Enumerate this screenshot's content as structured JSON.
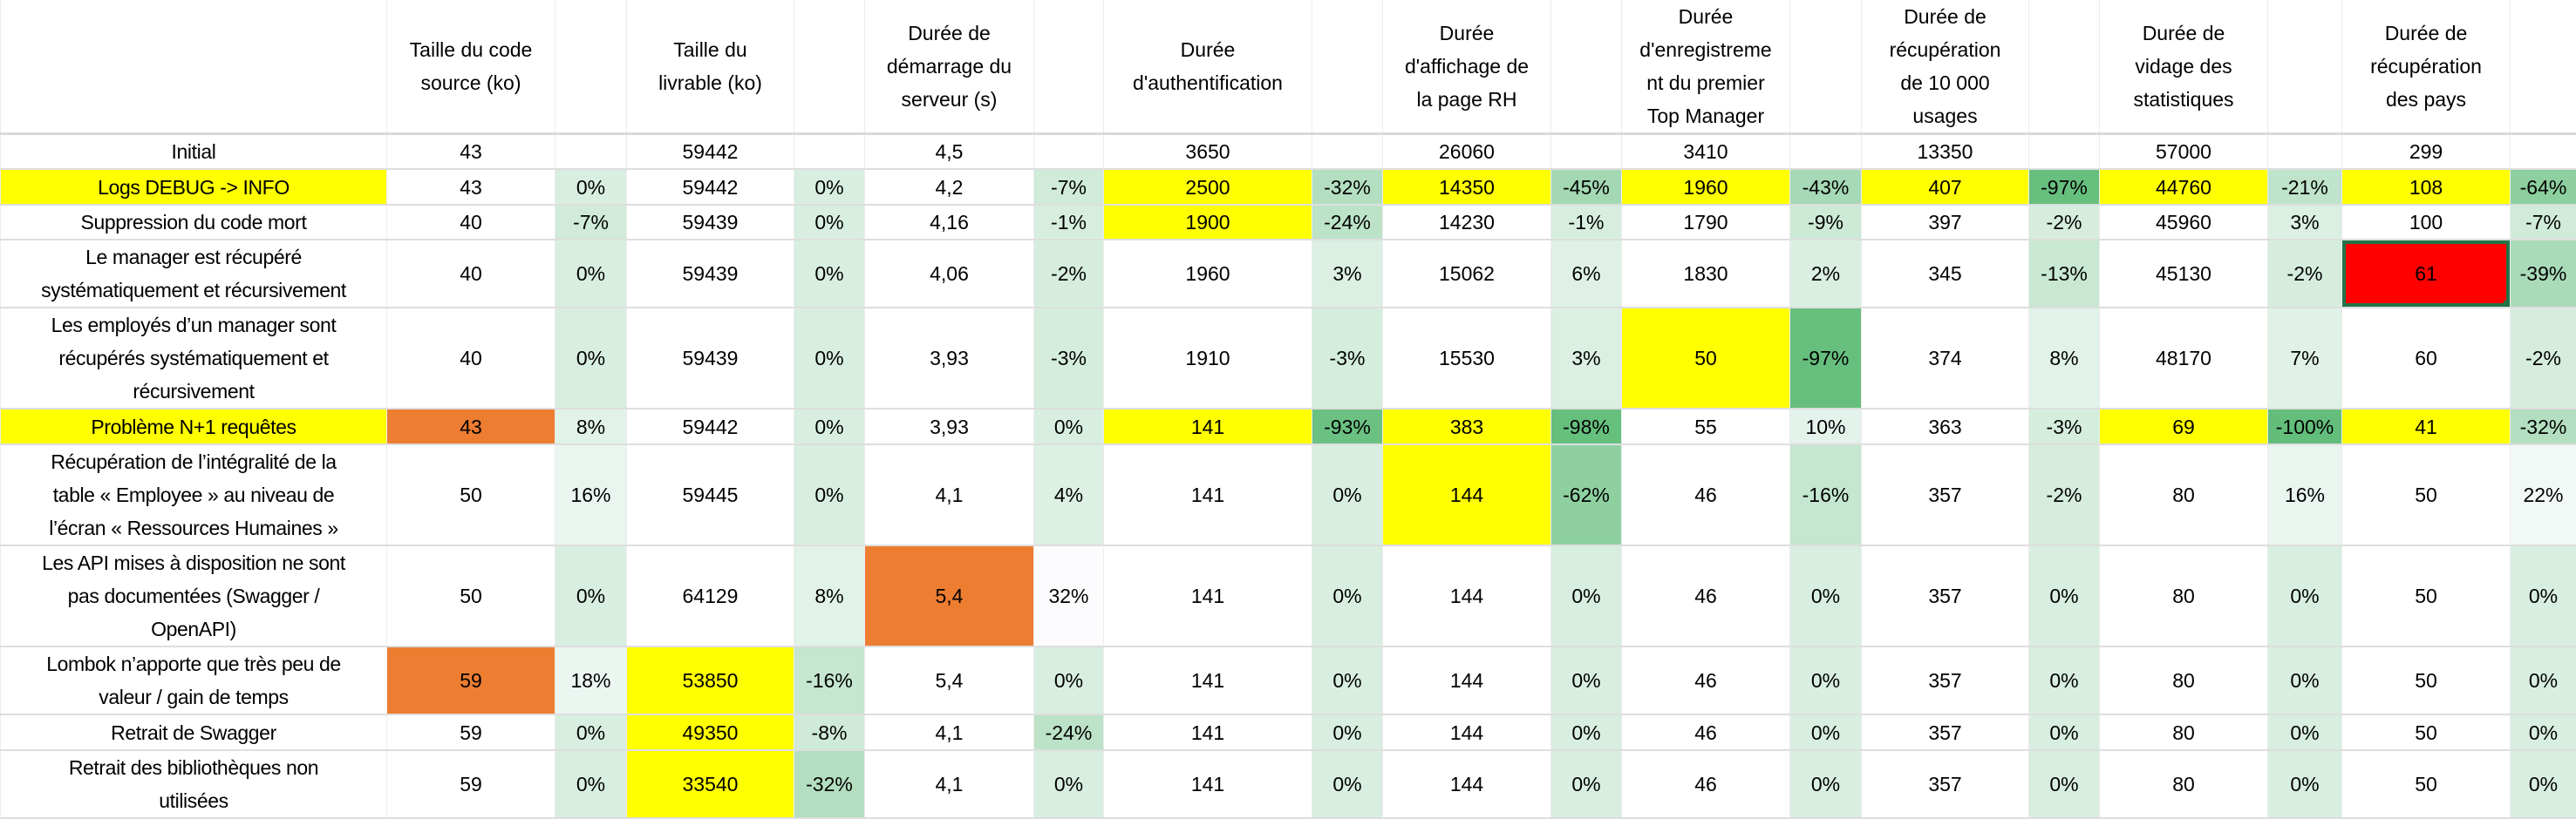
{
  "colors": {
    "yellow": "#FFFF00",
    "orange": "#ED7D31",
    "red": "#FF0000",
    "scale_min": "#63BE7B",
    "scale_mid": "#D8EEE0",
    "scale_max": "#FCFCFF",
    "selection": "#217346"
  },
  "headers": [
    "Taille du code\nsource (ko)",
    "Taille du\nlivrable (ko)",
    "Durée de\ndémarrage du\nserveur (s)",
    "Durée\nd'authentification",
    "Durée\nd'affichage de\nla page RH",
    "Durée\nd'enregistreme\nnt du premier\nTop Manager",
    "Durée de\nrécupération\nde 10 000\nusages",
    "Durée de\nvidage des\nstatistiques",
    "Durée de\nrécupération\ndes pays"
  ],
  "rows": [
    {
      "label": "Initial",
      "hl": "",
      "cells": [
        {
          "v": "43",
          "p": ""
        },
        {
          "v": "59442",
          "p": ""
        },
        {
          "v": "4,5",
          "p": ""
        },
        {
          "v": "3650",
          "p": ""
        },
        {
          "v": "26060",
          "p": ""
        },
        {
          "v": "3410",
          "p": ""
        },
        {
          "v": "13350",
          "p": ""
        },
        {
          "v": "57000",
          "p": ""
        },
        {
          "v": "299",
          "p": ""
        }
      ]
    },
    {
      "label": "Logs DEBUG -> INFO",
      "hl": "yellow",
      "cells": [
        {
          "v": "43",
          "p": "0%"
        },
        {
          "v": "59442",
          "p": "0%"
        },
        {
          "v": "4,2",
          "p": "-7%"
        },
        {
          "v": "2500",
          "p": "-32%",
          "hl": "yellow"
        },
        {
          "v": "14350",
          "p": "-45%",
          "hl": "yellow"
        },
        {
          "v": "1960",
          "p": "-43%",
          "hl": "yellow"
        },
        {
          "v": "407",
          "p": "-97%",
          "hl": "yellow"
        },
        {
          "v": "44760",
          "p": "-21%",
          "hl": "yellow"
        },
        {
          "v": "108",
          "p": "-64%",
          "hl": "yellow"
        }
      ]
    },
    {
      "label": "Suppression du code mort",
      "hl": "",
      "cells": [
        {
          "v": "40",
          "p": "-7%"
        },
        {
          "v": "59439",
          "p": "0%"
        },
        {
          "v": "4,16",
          "p": "-1%"
        },
        {
          "v": "1900",
          "p": "-24%",
          "hl": "yellow"
        },
        {
          "v": "14230",
          "p": "-1%"
        },
        {
          "v": "1790",
          "p": "-9%"
        },
        {
          "v": "397",
          "p": "-2%"
        },
        {
          "v": "45960",
          "p": "3%"
        },
        {
          "v": "100",
          "p": "-7%"
        }
      ]
    },
    {
      "label": "Le manager est récupéré\nsystématiquement et récursivement",
      "hl": "",
      "cells": [
        {
          "v": "40",
          "p": "0%"
        },
        {
          "v": "59439",
          "p": "0%"
        },
        {
          "v": "4,06",
          "p": "-2%"
        },
        {
          "v": "1960",
          "p": "3%"
        },
        {
          "v": "15062",
          "p": "6%"
        },
        {
          "v": "1830",
          "p": "2%"
        },
        {
          "v": "345",
          "p": "-13%"
        },
        {
          "v": "45130",
          "p": "-2%"
        },
        {
          "v": "61",
          "p": "-39%",
          "hl": "red",
          "selected": true
        }
      ]
    },
    {
      "label": "Les employés d’un manager sont\nrécupérés systématiquement et\nrécursivement",
      "hl": "",
      "cells": [
        {
          "v": "40",
          "p": "0%"
        },
        {
          "v": "59439",
          "p": "0%"
        },
        {
          "v": "3,93",
          "p": "-3%"
        },
        {
          "v": "1910",
          "p": "-3%"
        },
        {
          "v": "15530",
          "p": "3%"
        },
        {
          "v": "50",
          "p": "-97%",
          "hl": "yellow"
        },
        {
          "v": "374",
          "p": "8%"
        },
        {
          "v": "48170",
          "p": "7%"
        },
        {
          "v": "60",
          "p": "-2%"
        }
      ]
    },
    {
      "label": "Problème N+1 requêtes",
      "hl": "yellow",
      "cells": [
        {
          "v": "43",
          "p": "8%",
          "hl": "orange"
        },
        {
          "v": "59442",
          "p": "0%"
        },
        {
          "v": "3,93",
          "p": "0%"
        },
        {
          "v": "141",
          "p": "-93%",
          "hl": "yellow"
        },
        {
          "v": "383",
          "p": "-98%",
          "hl": "yellow"
        },
        {
          "v": "55",
          "p": "10%"
        },
        {
          "v": "363",
          "p": "-3%"
        },
        {
          "v": "69",
          "p": "-100%",
          "hl": "yellow"
        },
        {
          "v": "41",
          "p": "-32%",
          "hl": "yellow"
        }
      ]
    },
    {
      "label": "Récupération de l’intégralité de la\ntable « Employee » au niveau de\nl’écran « Ressources Humaines »",
      "hl": "",
      "cells": [
        {
          "v": "50",
          "p": "16%"
        },
        {
          "v": "59445",
          "p": "0%"
        },
        {
          "v": "4,1",
          "p": "4%"
        },
        {
          "v": "141",
          "p": "0%"
        },
        {
          "v": "144",
          "p": "-62%",
          "hl": "yellow"
        },
        {
          "v": "46",
          "p": "-16%"
        },
        {
          "v": "357",
          "p": "-2%"
        },
        {
          "v": "80",
          "p": "16%"
        },
        {
          "v": "50",
          "p": "22%"
        }
      ]
    },
    {
      "label": "Les API mises à disposition ne sont\npas documentées (Swagger /\nOpenAPI)",
      "hl": "",
      "cells": [
        {
          "v": "50",
          "p": "0%"
        },
        {
          "v": "64129",
          "p": "8%"
        },
        {
          "v": "5,4",
          "p": "32%",
          "hl": "orange"
        },
        {
          "v": "141",
          "p": "0%"
        },
        {
          "v": "144",
          "p": "0%"
        },
        {
          "v": "46",
          "p": "0%"
        },
        {
          "v": "357",
          "p": "0%"
        },
        {
          "v": "80",
          "p": "0%"
        },
        {
          "v": "50",
          "p": "0%"
        }
      ]
    },
    {
      "label": "Lombok n’apporte que très peu de\nvaleur / gain de temps",
      "hl": "",
      "cells": [
        {
          "v": "59",
          "p": "18%",
          "hl": "orange"
        },
        {
          "v": "53850",
          "p": "-16%",
          "hl": "yellow"
        },
        {
          "v": "5,4",
          "p": "0%"
        },
        {
          "v": "141",
          "p": "0%"
        },
        {
          "v": "144",
          "p": "0%"
        },
        {
          "v": "46",
          "p": "0%"
        },
        {
          "v": "357",
          "p": "0%"
        },
        {
          "v": "80",
          "p": "0%"
        },
        {
          "v": "50",
          "p": "0%"
        }
      ]
    },
    {
      "label": "Retrait de Swagger",
      "hl": "",
      "cells": [
        {
          "v": "59",
          "p": "0%"
        },
        {
          "v": "49350",
          "p": "-8%",
          "hl": "yellow"
        },
        {
          "v": "4,1",
          "p": "-24%"
        },
        {
          "v": "141",
          "p": "0%"
        },
        {
          "v": "144",
          "p": "0%"
        },
        {
          "v": "46",
          "p": "0%"
        },
        {
          "v": "357",
          "p": "0%"
        },
        {
          "v": "80",
          "p": "0%"
        },
        {
          "v": "50",
          "p": "0%"
        }
      ]
    },
    {
      "label": "Retrait des bibliothèques non\nutilisées",
      "hl": "",
      "cells": [
        {
          "v": "59",
          "p": "0%"
        },
        {
          "v": "33540",
          "p": "-32%",
          "hl": "yellow"
        },
        {
          "v": "4,1",
          "p": "0%"
        },
        {
          "v": "141",
          "p": "0%"
        },
        {
          "v": "144",
          "p": "0%"
        },
        {
          "v": "46",
          "p": "0%"
        },
        {
          "v": "357",
          "p": "0%"
        },
        {
          "v": "80",
          "p": "0%"
        },
        {
          "v": "50",
          "p": "0%"
        }
      ]
    }
  ]
}
